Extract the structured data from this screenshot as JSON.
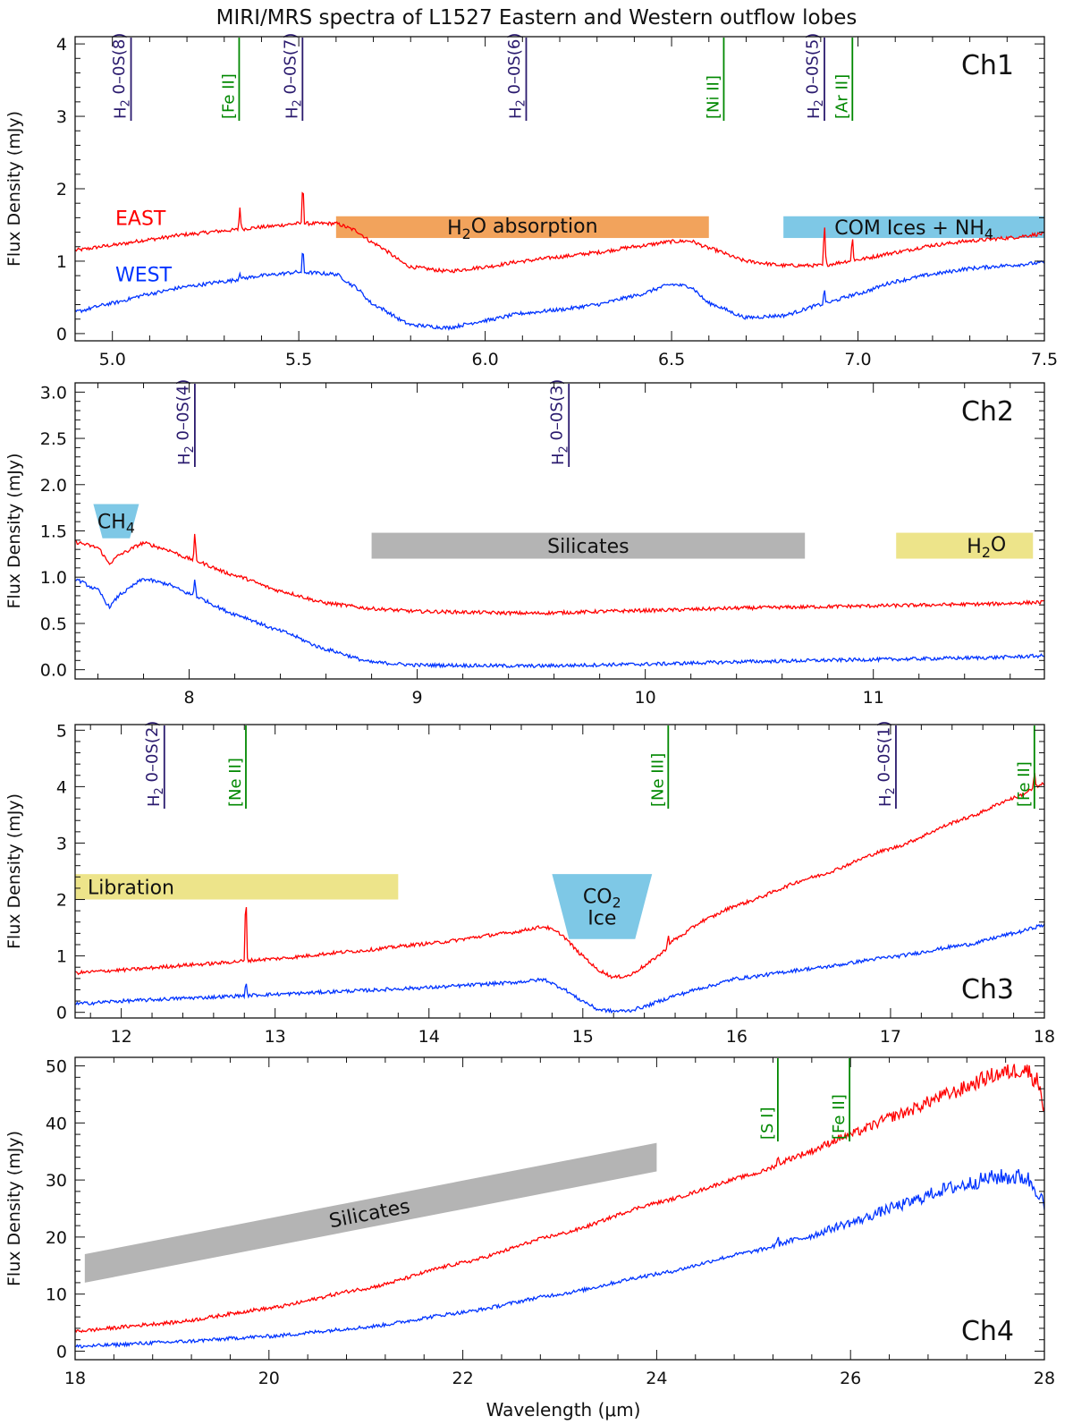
{
  "figure": {
    "title": "MIRI/MRS spectra of L1527 Eastern and Western outflow lobes",
    "xlabel": "Wavelength (μm)",
    "colors": {
      "east": "#ff0000",
      "west": "#0033ff",
      "h2": "#2a1a6e",
      "atomic": "#008800",
      "orange": "#f2a35c",
      "cyan": "#7ec8e6",
      "gray": "#b4b4b4",
      "yellow": "#ede48a"
    }
  },
  "chart_data": [
    {
      "type": "line",
      "panel": "Ch1",
      "ylabel": "Flux Density (mJy)",
      "xlim": [
        4.9,
        7.5
      ],
      "ylim": [
        -0.1,
        4.1
      ],
      "xticks": [
        5.0,
        5.5,
        6.0,
        6.5,
        7.0,
        7.5
      ],
      "xticklabels": [
        "5.0",
        "5.5",
        "6.0",
        "6.5",
        "7.0",
        "7.5"
      ],
      "yticks": [
        0,
        1,
        2,
        3,
        4
      ],
      "yticklabels": [
        "0",
        "1",
        "2",
        "3",
        "4"
      ],
      "series_labels": [
        {
          "name": "EAST",
          "x": 4.96,
          "y": 1.6
        },
        {
          "name": "WEST",
          "x": 4.96,
          "y": 0.82
        }
      ],
      "series": [
        {
          "name": "EAST",
          "x": [
            4.9,
            5.0,
            5.1,
            5.2,
            5.3,
            5.4,
            5.5,
            5.6,
            5.65,
            5.7,
            5.8,
            5.9,
            6.0,
            6.1,
            6.2,
            6.3,
            6.4,
            6.5,
            6.55,
            6.6,
            6.7,
            6.8,
            6.9,
            7.0,
            7.1,
            7.2,
            7.3,
            7.4,
            7.5
          ],
          "y": [
            1.15,
            1.22,
            1.3,
            1.37,
            1.42,
            1.47,
            1.52,
            1.52,
            1.43,
            1.25,
            0.92,
            0.86,
            0.92,
            1.0,
            1.06,
            1.12,
            1.2,
            1.27,
            1.28,
            1.18,
            1.0,
            0.94,
            0.94,
            1.02,
            1.12,
            1.22,
            1.28,
            1.32,
            1.38
          ]
        },
        {
          "name": "WEST",
          "x": [
            4.9,
            5.0,
            5.1,
            5.2,
            5.3,
            5.4,
            5.5,
            5.6,
            5.65,
            5.7,
            5.8,
            5.9,
            6.0,
            6.1,
            6.2,
            6.3,
            6.4,
            6.5,
            6.55,
            6.6,
            6.7,
            6.8,
            6.9,
            7.0,
            7.1,
            7.2,
            7.3,
            7.4,
            7.5
          ],
          "y": [
            0.3,
            0.42,
            0.55,
            0.65,
            0.72,
            0.8,
            0.85,
            0.82,
            0.65,
            0.4,
            0.12,
            0.08,
            0.18,
            0.28,
            0.33,
            0.4,
            0.52,
            0.68,
            0.65,
            0.42,
            0.22,
            0.25,
            0.4,
            0.55,
            0.72,
            0.82,
            0.9,
            0.94,
            0.98
          ]
        }
      ],
      "peaks": [
        {
          "x": 5.342,
          "east": 0.3,
          "west": 0.1
        },
        {
          "x": 5.511,
          "east": 0.65,
          "west": 0.35
        },
        {
          "x": 6.91,
          "east": 0.6,
          "west": 0.22
        },
        {
          "x": 6.985,
          "east": 0.35,
          "west": 0.0
        }
      ],
      "line_markers": [
        {
          "x": 5.05,
          "label": "H₂ 0–0S(8)",
          "kind": "h2"
        },
        {
          "x": 5.34,
          "label": "[Fe II]",
          "kind": "atomic"
        },
        {
          "x": 5.51,
          "label": "H₂ 0–0S(7)",
          "kind": "h2"
        },
        {
          "x": 6.11,
          "label": "H₂ 0–0S(6)",
          "kind": "h2"
        },
        {
          "x": 6.64,
          "label": "[Ni II]",
          "kind": "atomic"
        },
        {
          "x": 6.91,
          "label": "H₂ 0–0S(5)",
          "kind": "h2"
        },
        {
          "x": 6.985,
          "label": "[Ar II]",
          "kind": "atomic"
        }
      ],
      "bands": [
        {
          "shape": "rect",
          "x0": 5.6,
          "x1": 6.6,
          "y0": 1.32,
          "y1": 1.62,
          "color": "orange",
          "label": "H₂O absorption"
        },
        {
          "shape": "rect",
          "x0": 6.8,
          "x1": 7.5,
          "y0": 1.32,
          "y1": 1.62,
          "color": "cyan",
          "label": "COM Ices + NH₄"
        }
      ],
      "channel_label": "Ch1",
      "channel_label_pos": "top-right"
    },
    {
      "type": "line",
      "panel": "Ch2",
      "ylabel": "Flux Density (mJy)",
      "xlim": [
        7.5,
        11.75
      ],
      "ylim": [
        -0.1,
        3.1
      ],
      "xticks": [
        8,
        9,
        10,
        11
      ],
      "xticklabels": [
        "8",
        "9",
        "10",
        "11"
      ],
      "yticks": [
        0.0,
        0.5,
        1.0,
        1.5,
        2.0,
        2.5,
        3.0
      ],
      "yticklabels": [
        "0.0",
        "0.5",
        "1.0",
        "1.5",
        "2.0",
        "2.5",
        "3.0"
      ],
      "series": [
        {
          "name": "EAST",
          "x": [
            7.5,
            7.6,
            7.65,
            7.7,
            7.8,
            7.9,
            8.0,
            8.2,
            8.4,
            8.6,
            8.8,
            9.0,
            9.5,
            10.0,
            10.5,
            11.0,
            11.5,
            11.75
          ],
          "y": [
            1.38,
            1.32,
            1.15,
            1.25,
            1.37,
            1.3,
            1.2,
            1.02,
            0.85,
            0.72,
            0.66,
            0.63,
            0.61,
            0.64,
            0.67,
            0.69,
            0.71,
            0.73
          ]
        },
        {
          "name": "WEST",
          "x": [
            7.5,
            7.6,
            7.65,
            7.7,
            7.8,
            7.9,
            8.0,
            8.2,
            8.4,
            8.6,
            8.8,
            9.0,
            9.5,
            10.0,
            10.5,
            11.0,
            11.5,
            11.75
          ],
          "y": [
            0.98,
            0.86,
            0.68,
            0.82,
            0.98,
            0.93,
            0.82,
            0.6,
            0.42,
            0.22,
            0.08,
            0.05,
            0.04,
            0.06,
            0.09,
            0.11,
            0.13,
            0.15
          ]
        }
      ],
      "peaks": [
        {
          "x": 8.025,
          "east": 0.3,
          "west": 0.2
        }
      ],
      "line_markers": [
        {
          "x": 8.025,
          "label": "H₂ 0–0S(4)",
          "kind": "h2"
        },
        {
          "x": 9.665,
          "label": "H₂ 0–0S(3)",
          "kind": "h2"
        }
      ],
      "bands": [
        {
          "shape": "trap-down",
          "x0": 7.58,
          "x1": 7.78,
          "y0": 1.42,
          "y1": 1.79,
          "inset": 0.04,
          "color": "cyan",
          "label": "CH₄"
        },
        {
          "shape": "rect",
          "x0": 8.8,
          "x1": 10.7,
          "y0": 1.2,
          "y1": 1.48,
          "color": "gray",
          "label": "Silicates"
        },
        {
          "shape": "rect",
          "x0": 11.1,
          "x1": 11.7,
          "y0": 1.2,
          "y1": 1.48,
          "color": "yellow",
          "label": "H₂O",
          "label_align": "right"
        }
      ],
      "channel_label": "Ch2",
      "channel_label_pos": "top-right"
    },
    {
      "type": "line",
      "panel": "Ch3",
      "ylabel": "Flux Density (mJy)",
      "xlim": [
        11.7,
        18.0
      ],
      "ylim": [
        -0.1,
        5.1
      ],
      "xticks": [
        12,
        13,
        14,
        15,
        16,
        17,
        18
      ],
      "xticklabels": [
        "12",
        "13",
        "14",
        "15",
        "16",
        "17",
        "18"
      ],
      "yticks": [
        0,
        1,
        2,
        3,
        4,
        5
      ],
      "yticklabels": [
        "0",
        "1",
        "2",
        "3",
        "4",
        "5"
      ],
      "series": [
        {
          "name": "EAST",
          "x": [
            11.7,
            12.0,
            12.5,
            13.0,
            13.5,
            14.0,
            14.5,
            14.75,
            14.85,
            15.0,
            15.1,
            15.2,
            15.3,
            15.4,
            15.5,
            15.6,
            15.8,
            16.0,
            16.5,
            17.0,
            17.5,
            17.8,
            18.0
          ],
          "y": [
            0.7,
            0.75,
            0.85,
            0.95,
            1.08,
            1.22,
            1.4,
            1.52,
            1.4,
            1.0,
            0.75,
            0.62,
            0.65,
            0.82,
            1.02,
            1.3,
            1.65,
            1.9,
            2.4,
            2.9,
            3.45,
            3.8,
            4.05
          ]
        },
        {
          "name": "WEST",
          "x": [
            11.7,
            12.0,
            12.5,
            13.0,
            13.5,
            14.0,
            14.5,
            14.75,
            14.85,
            15.0,
            15.1,
            15.2,
            15.3,
            15.4,
            15.5,
            15.6,
            15.8,
            16.0,
            16.5,
            17.0,
            17.5,
            17.8,
            18.0
          ],
          "y": [
            0.15,
            0.2,
            0.26,
            0.32,
            0.38,
            0.44,
            0.52,
            0.58,
            0.45,
            0.2,
            0.05,
            0.02,
            0.03,
            0.1,
            0.2,
            0.3,
            0.45,
            0.6,
            0.78,
            0.98,
            1.2,
            1.4,
            1.55
          ]
        }
      ],
      "peaks": [
        {
          "x": 12.81,
          "east": 1.3,
          "west": 0.25
        },
        {
          "x": 15.555,
          "east": 0.2,
          "west": 0.0
        },
        {
          "x": 17.935,
          "east": 0.3,
          "west": 0.0
        }
      ],
      "line_markers": [
        {
          "x": 12.28,
          "label": "H₂ 0–0S(2)",
          "kind": "h2"
        },
        {
          "x": 12.81,
          "label": "[Ne II]",
          "kind": "atomic"
        },
        {
          "x": 15.555,
          "label": "[Ne III]",
          "kind": "atomic"
        },
        {
          "x": 17.035,
          "label": "H₂ 0–0S(1)",
          "kind": "h2"
        },
        {
          "x": 17.935,
          "label": "[Fe II]",
          "kind": "atomic"
        }
      ],
      "bands": [
        {
          "shape": "rect",
          "x0": 11.7,
          "x1": 13.8,
          "y0": 2.0,
          "y1": 2.45,
          "color": "yellow",
          "label": "Libration",
          "label_align": "left"
        },
        {
          "shape": "trap-down",
          "x0": 14.8,
          "x1": 15.45,
          "y0": 1.3,
          "y1": 2.45,
          "inset": 0.11,
          "color": "cyan",
          "label": "CO₂",
          "label2": "Ice"
        }
      ],
      "channel_label": "Ch3",
      "channel_label_pos": "bottom-right"
    },
    {
      "type": "line",
      "panel": "Ch4",
      "ylabel": "Flux Density (mJy)",
      "xlabel": "Wavelength (μm)",
      "xlim": [
        18,
        28
      ],
      "ylim": [
        -1.5,
        51.5
      ],
      "xticks": [
        18,
        20,
        22,
        24,
        26,
        28
      ],
      "xticklabels": [
        "18",
        "20",
        "22",
        "24",
        "26",
        "28"
      ],
      "yticks": [
        0,
        10,
        20,
        30,
        40,
        50
      ],
      "yticklabels": [
        "0",
        "10",
        "20",
        "30",
        "40",
        "50"
      ],
      "series": [
        {
          "name": "EAST",
          "x": [
            18,
            19,
            20,
            21,
            22,
            23,
            24,
            25,
            25.5,
            26,
            26.5,
            27,
            27.5,
            27.8,
            27.95,
            28.0
          ],
          "y": [
            3.5,
            5.0,
            7.5,
            11.0,
            15.5,
            20.5,
            26.0,
            31.0,
            34.5,
            38.0,
            41.5,
            45.0,
            48.5,
            49.5,
            47.0,
            42.0
          ]
        },
        {
          "name": "WEST",
          "x": [
            18,
            19,
            20,
            21,
            22,
            23,
            24,
            25,
            25.5,
            26,
            26.5,
            27,
            27.5,
            27.8,
            27.95,
            28.0
          ],
          "y": [
            0.8,
            1.6,
            2.6,
            4.2,
            6.8,
            10.0,
            13.5,
            17.5,
            19.8,
            22.5,
            25.5,
            28.5,
            30.5,
            30.5,
            28.0,
            24.5
          ]
        }
      ],
      "peaks": [
        {
          "x": 25.25,
          "east": 1.3,
          "west": 1.8
        }
      ],
      "line_markers": [
        {
          "x": 25.25,
          "label": "[S I]",
          "kind": "atomic"
        },
        {
          "x": 25.99,
          "label": "[Fe II]",
          "kind": "atomic"
        }
      ],
      "bands": [
        {
          "shape": "slant",
          "x0": 18.1,
          "x1": 24.0,
          "y0a": 12.0,
          "y1a": 17.0,
          "y0b": 31.5,
          "y1b": 36.5,
          "color": "gray",
          "label": "Silicates"
        }
      ],
      "channel_label": "Ch4",
      "channel_label_pos": "bottom-right"
    }
  ]
}
